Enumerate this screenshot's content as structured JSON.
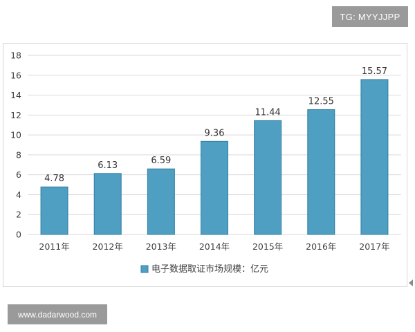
{
  "watermark_top": "TG: MYYJJPP",
  "watermark_bottom": "www.dadarwood.com",
  "colors": {
    "bar_fill": "#4f9fc3",
    "bar_stroke": "#2f7da3",
    "grid": "#d9d9d9",
    "axis_text": "#404040",
    "badge_bg": "#9a9a9a"
  },
  "chart_data": {
    "type": "bar",
    "categories": [
      "2011年",
      "2012年",
      "2013年",
      "2014年",
      "2015年",
      "2016年",
      "2017年"
    ],
    "values": [
      4.78,
      6.13,
      6.59,
      9.36,
      11.44,
      12.55,
      15.57
    ],
    "value_labels": [
      "4.78",
      "6.13",
      "6.59",
      "9.36",
      "11.44",
      "12.55",
      "15.57"
    ],
    "title": "",
    "xlabel": "",
    "ylabel": "",
    "ylim": [
      0,
      18
    ],
    "yticks": [
      "0",
      "2",
      "4",
      "6",
      "8",
      "10",
      "12",
      "14",
      "16",
      "18"
    ],
    "grid": true,
    "legend": {
      "position": "bottom",
      "entries": [
        "电子数据取证市场规模：亿元"
      ]
    }
  }
}
